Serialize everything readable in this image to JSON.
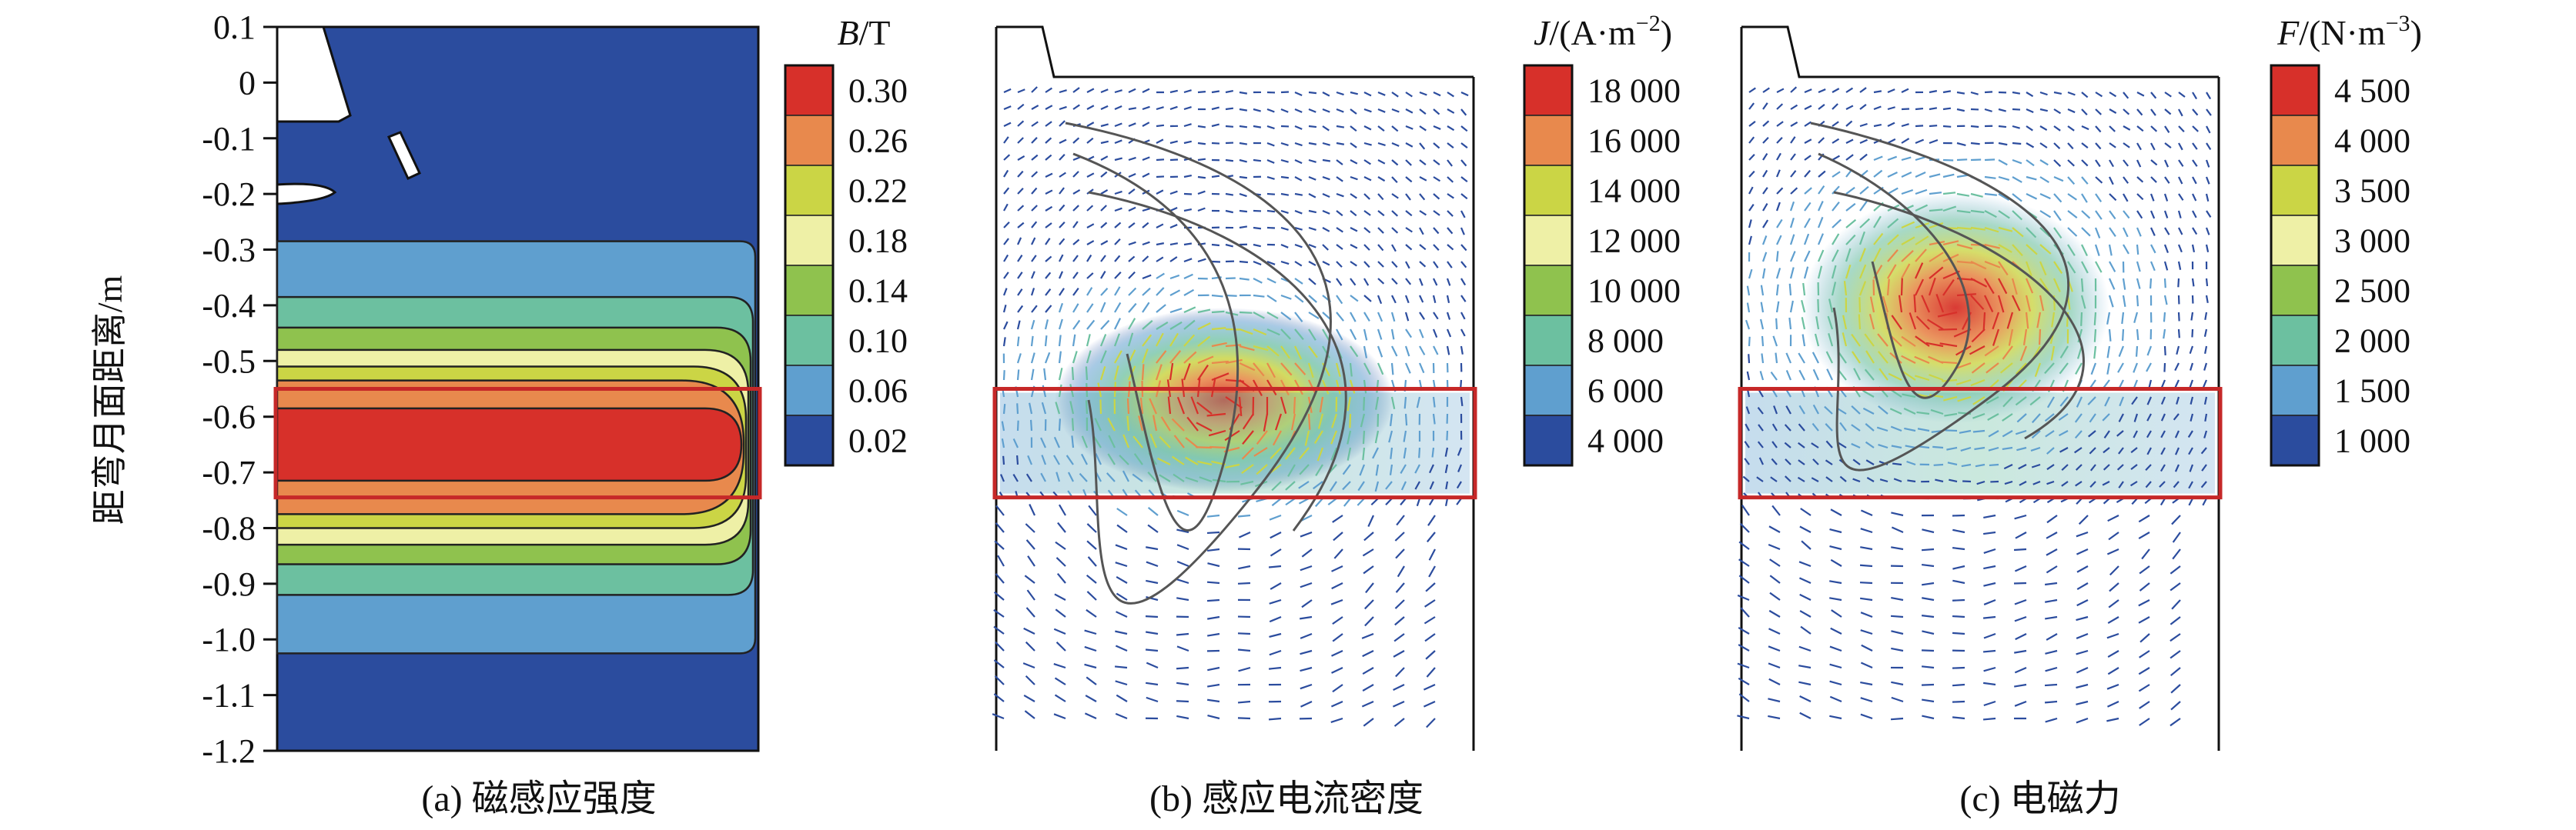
{
  "chart_data": [
    {
      "type": "heatmap",
      "panel": "a",
      "caption": "(a) 磁感应强度",
      "ylabel": "距弯月面距离/m",
      "ylim": [
        -1.2,
        0.1
      ],
      "yticks": [
        "0.1",
        "0",
        "-0.1",
        "-0.2",
        "-0.3",
        "-0.4",
        "-0.5",
        "-0.6",
        "-0.7",
        "-0.8",
        "-0.9",
        "-1.0",
        "-1.1",
        "-1.2"
      ],
      "ytick_values": [
        0.1,
        0,
        -0.1,
        -0.2,
        -0.3,
        -0.4,
        -0.5,
        -0.6,
        -0.7,
        -0.8,
        -0.9,
        -1.0,
        -1.1,
        -1.2
      ],
      "colorbar": {
        "title_var": "B",
        "title_unit": "/T",
        "labels": [
          "0.30",
          "0.26",
          "0.22",
          "0.18",
          "0.14",
          "0.10",
          "0.06",
          "0.02"
        ],
        "values": [
          0.3,
          0.26,
          0.22,
          0.18,
          0.14,
          0.1,
          0.06,
          0.02
        ],
        "colors": [
          "#d7302a",
          "#e8894d",
          "#cbd545",
          "#eef0a6",
          "#8fc24e",
          "#6cc0a0",
          "#5f9fcf",
          "#2b4c9e"
        ]
      },
      "contour_levels_y": [
        {
          "level": 0.06,
          "y_top": -0.285,
          "y_bottom": -1.025
        },
        {
          "level": 0.1,
          "y_top": -0.385,
          "y_bottom": -0.92
        },
        {
          "level": 0.14,
          "y_top": -0.44,
          "y_bottom": -0.865
        },
        {
          "level": 0.18,
          "y_top": -0.48,
          "y_bottom": -0.83
        },
        {
          "level": 0.22,
          "y_top": -0.51,
          "y_bottom": -0.8
        },
        {
          "level": 0.26,
          "y_top": -0.535,
          "y_bottom": -0.775
        },
        {
          "level": 0.3,
          "y_top": -0.585,
          "y_bottom": -0.715
        }
      ],
      "highlight_band": [
        -0.55,
        -0.745
      ]
    },
    {
      "type": "heatmap",
      "panel": "b",
      "caption": "(b) 感应电流密度",
      "colorbar": {
        "title_var": "J",
        "title_unit": "/(A·m",
        "title_sup": "−2",
        "title_close": ")",
        "labels": [
          "18 000",
          "16 000",
          "14 000",
          "12 000",
          "10 000",
          "8 000",
          "6 000",
          "4 000"
        ],
        "values": [
          18000,
          16000,
          14000,
          12000,
          10000,
          8000,
          6000,
          4000
        ],
        "colors": [
          "#d7302a",
          "#e8894d",
          "#cbd545",
          "#eef0a6",
          "#8fc24e",
          "#6cc0a0",
          "#5f9fcf",
          "#2b4c9e"
        ]
      },
      "highlight_band": [
        -0.55,
        -0.745
      ]
    },
    {
      "type": "heatmap",
      "panel": "c",
      "caption": "(c) 电磁力",
      "colorbar": {
        "title_var": "F",
        "title_unit": "/(N·m",
        "title_sup": "−3",
        "title_close": ")",
        "labels": [
          "4 500",
          "4 000",
          "3 500",
          "3 000",
          "2 500",
          "2 000",
          "1 500",
          "1 000"
        ],
        "values": [
          4500,
          4000,
          3500,
          3000,
          2500,
          2000,
          1500,
          1000
        ],
        "colors": [
          "#d7302a",
          "#e8894d",
          "#cbd545",
          "#eef0a6",
          "#8fc24e",
          "#6cc0a0",
          "#5f9fcf",
          "#2b4c9e"
        ]
      },
      "highlight_band": [
        -0.55,
        -0.745
      ]
    }
  ]
}
